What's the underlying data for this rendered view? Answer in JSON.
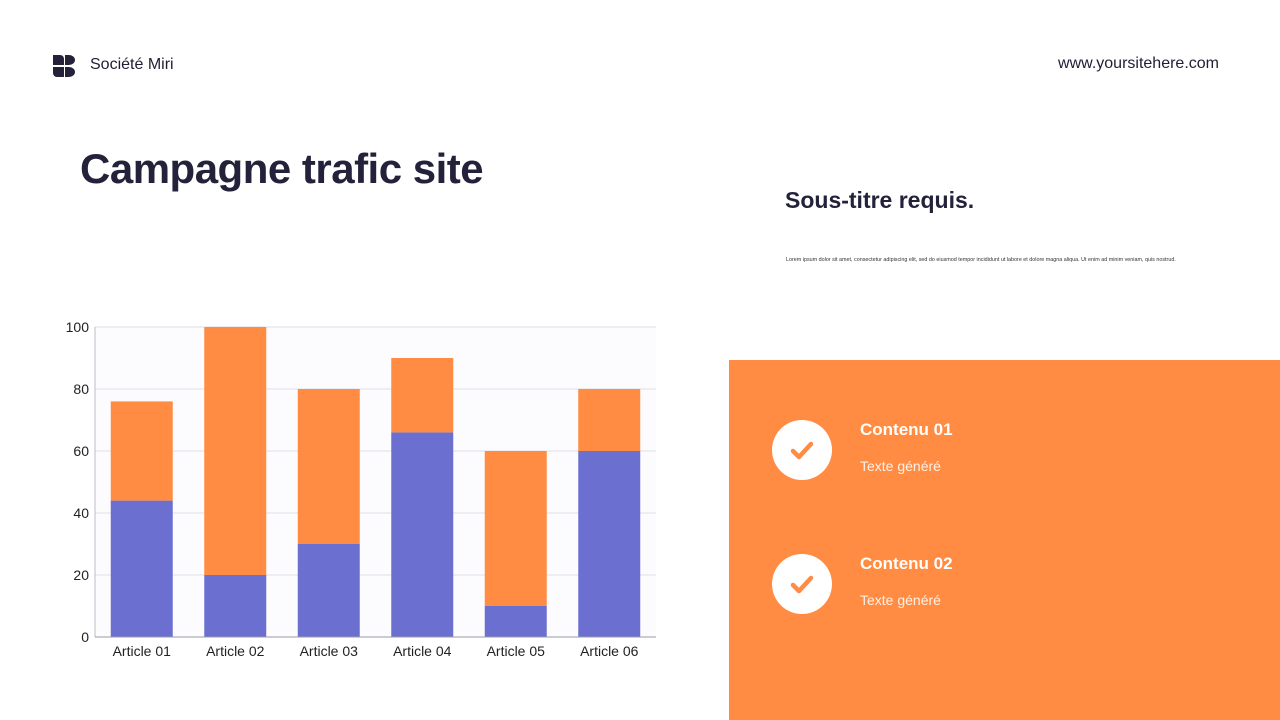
{
  "header": {
    "company": "Société Miri",
    "website": "www.yoursitehere.com"
  },
  "title": "Campagne trafic site",
  "subtitle": "Sous-titre requis.",
  "body_text": "Lorem ipsum dolor sit amet, consectetur adipiscing elit, sed do eiusmod tempor incididunt ut labore et dolore magna aliqua. Ut enim ad minim veniam, quis nostrud.",
  "panel": {
    "items": [
      {
        "title": "Contenu 01",
        "text": "Texte généré",
        "icon": "check-icon"
      },
      {
        "title": "Contenu 02",
        "text": "Texte généré",
        "icon": "check-icon"
      }
    ]
  },
  "colors": {
    "accent_orange": "#ff8c42",
    "bar_blue": "#6b6fd0",
    "title_dark": "#23223a"
  },
  "chart_data": {
    "type": "bar",
    "stacked": true,
    "categories": [
      "Article 01",
      "Article 02",
      "Article 03",
      "Article 04",
      "Article 05",
      "Article 06"
    ],
    "series": [
      {
        "values": [
          44,
          20,
          30,
          66,
          10,
          60
        ],
        "color": "#6b6fd0"
      },
      {
        "values": [
          32,
          80,
          50,
          24,
          50,
          20
        ],
        "color": "#ff8c42"
      }
    ],
    "ylim": [
      0,
      100
    ],
    "yticks": [
      0,
      20,
      40,
      60,
      80,
      100
    ],
    "grid": true,
    "legend": "none"
  }
}
